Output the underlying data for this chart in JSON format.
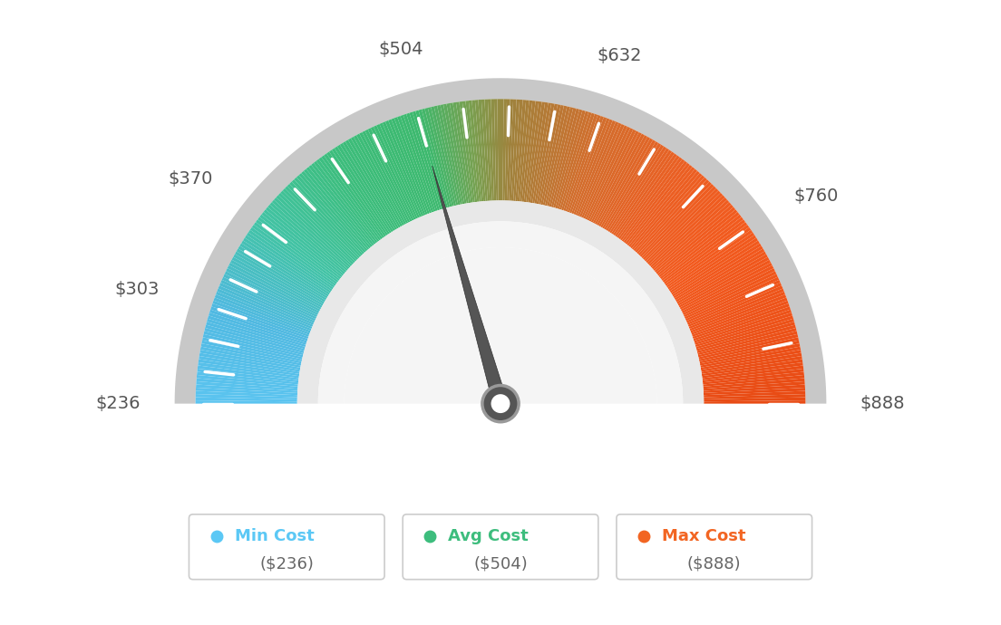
{
  "min_val": 236,
  "max_val": 888,
  "avg_val": 504,
  "needle_value": 504,
  "colors": {
    "background": "#FFFFFF",
    "needle": "#555555",
    "label_color": "#555555",
    "gauge_outer_border": "#CCCCCC",
    "gauge_inner_border": "#DDDDDD",
    "gauge_white_inner": "#F0F0F0"
  },
  "color_stops": [
    [
      236,
      [
        91,
        196,
        240
      ]
    ],
    [
      303,
      [
        80,
        185,
        225
      ]
    ],
    [
      370,
      [
        66,
        195,
        165
      ]
    ],
    [
      437,
      [
        61,
        189,
        125
      ]
    ],
    [
      504,
      [
        61,
        185,
        110
      ]
    ],
    [
      540,
      [
        120,
        160,
        80
      ]
    ],
    [
      570,
      [
        160,
        130,
        60
      ]
    ],
    [
      632,
      [
        210,
        110,
        45
      ]
    ],
    [
      700,
      [
        235,
        95,
        35
      ]
    ],
    [
      760,
      [
        242,
        90,
        30
      ]
    ],
    [
      888,
      [
        232,
        75,
        20
      ]
    ]
  ],
  "label_positions": [
    {
      "label": "$236",
      "val": 236
    },
    {
      "label": "$303",
      "val": 303
    },
    {
      "label": "$370",
      "val": 370
    },
    {
      "label": "$504",
      "val": 504
    },
    {
      "label": "$632",
      "val": 632
    },
    {
      "label": "$760",
      "val": 760
    },
    {
      "label": "$888",
      "val": 888
    }
  ],
  "legend": [
    {
      "label": "Min Cost",
      "value": "($236)",
      "color": "#5BC8F5"
    },
    {
      "label": "Avg Cost",
      "value": "($504)",
      "color": "#3DBD7D"
    },
    {
      "label": "Max Cost",
      "value": "($888)",
      "color": "#F26522"
    }
  ]
}
